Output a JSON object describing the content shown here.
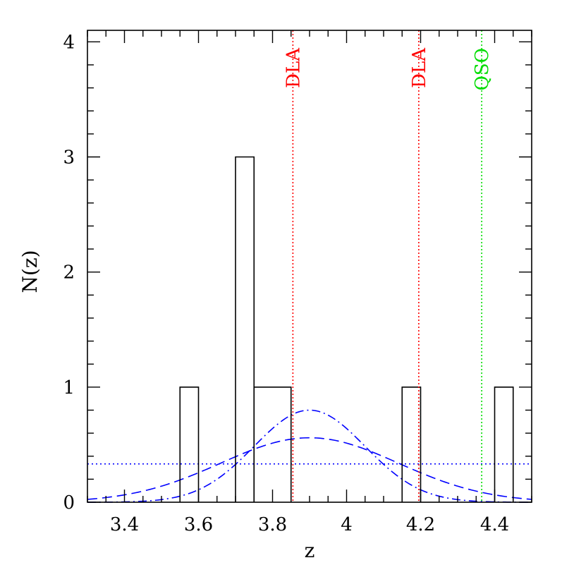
{
  "chart_data": {
    "type": "histogram",
    "xlabel": "z",
    "ylabel": "N(z)",
    "xlim": [
      3.3,
      4.5
    ],
    "ylim": [
      0,
      4.1
    ],
    "x_ticks": [
      {
        "value": 3.4,
        "label": "3.4"
      },
      {
        "value": 3.6,
        "label": "3.6"
      },
      {
        "value": 3.8,
        "label": "3.8"
      },
      {
        "value": 4.0,
        "label": "4"
      },
      {
        "value": 4.2,
        "label": "4.2"
      },
      {
        "value": 4.4,
        "label": "4.4"
      }
    ],
    "y_ticks": [
      {
        "value": 0,
        "label": "0"
      },
      {
        "value": 1,
        "label": "1"
      },
      {
        "value": 2,
        "label": "2"
      },
      {
        "value": 3,
        "label": "3"
      },
      {
        "value": 4,
        "label": "4"
      }
    ],
    "histogram_bins": [
      {
        "x0": 3.55,
        "x1": 3.6,
        "count": 1
      },
      {
        "x0": 3.6,
        "x1": 3.7,
        "count": 0
      },
      {
        "x0": 3.7,
        "x1": 3.75,
        "count": 3
      },
      {
        "x0": 3.75,
        "x1": 3.85,
        "count": 1
      },
      {
        "x0": 4.15,
        "x1": 4.2,
        "count": 1
      },
      {
        "x0": 4.4,
        "x1": 4.45,
        "count": 1
      }
    ],
    "reference_lines": [
      {
        "label": "DLA",
        "x": 3.855,
        "color": "#ff0000"
      },
      {
        "label": "DLA",
        "x": 4.195,
        "color": "#ff0000"
      },
      {
        "label": "QSO",
        "x": 4.365,
        "color": "#00dd00"
      }
    ],
    "model_curves": [
      {
        "style": "dotted",
        "color": "#0000ff",
        "kind": "uniform",
        "level": 0.333
      },
      {
        "style": "dashed",
        "color": "#0000ff",
        "kind": "gaussian",
        "peak": 0.56,
        "mean": 3.9,
        "sigma": 0.24
      },
      {
        "style": "dash-dot",
        "color": "#0000ff",
        "kind": "gaussian",
        "peak": 0.8,
        "mean": 3.9,
        "sigma": 0.15
      }
    ]
  }
}
